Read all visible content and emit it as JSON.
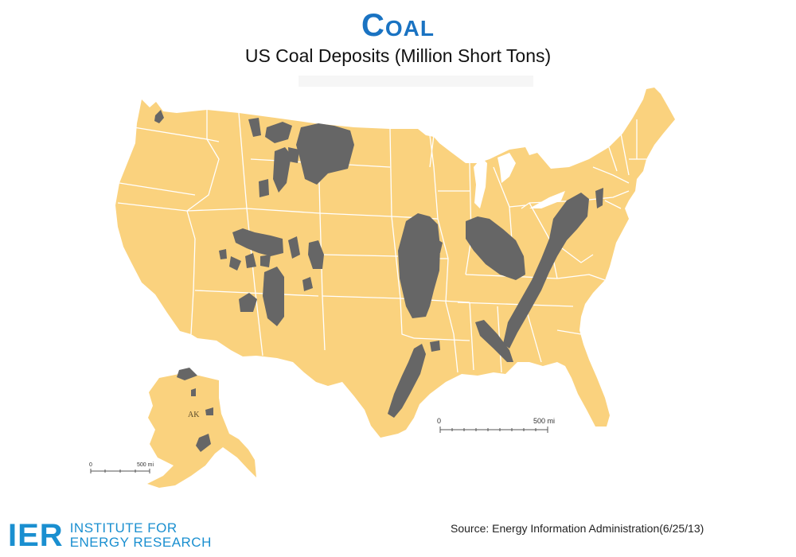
{
  "header": {
    "title": "Coal",
    "subtitle": "US Coal Deposits (Million Short Tons)"
  },
  "map": {
    "land_color": "#fad27e",
    "border_color": "#ffffff",
    "deposit_color": "#666666",
    "alaska_label": "AK",
    "main_scale": {
      "zero": "0",
      "max": "500 mi"
    },
    "alaska_scale": {
      "zero": "0",
      "max": "500 mi"
    }
  },
  "logo": {
    "mark": "IER",
    "line1": "INSTITUTE FOR",
    "line2": "ENERGY RESEARCH",
    "color": "#1a8fd0"
  },
  "footer": {
    "source": "Source: Energy Information Administration(6/25/13)"
  }
}
